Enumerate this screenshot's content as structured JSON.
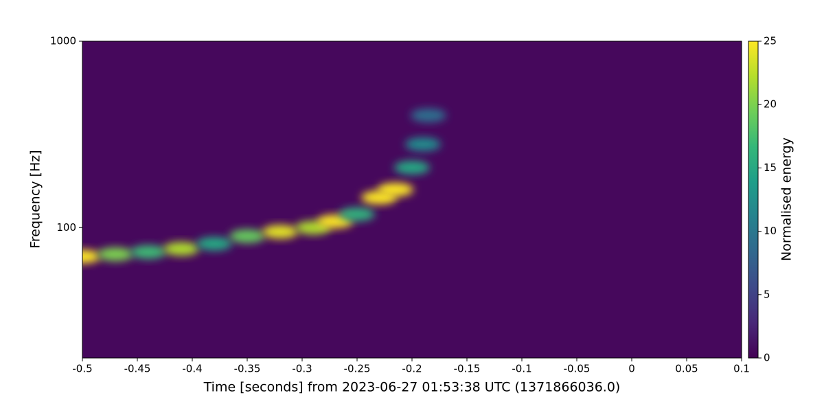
{
  "chart_data": {
    "type": "spectrogram",
    "xlabel": "Time [seconds] from 2023-06-27 01:53:38 UTC (1371866036.0)",
    "ylabel": "Frequency [Hz]",
    "colorbar_label": "Normalised energy",
    "xlim": [
      -0.5,
      0.1
    ],
    "xticks": [
      -0.5,
      -0.45,
      -0.4,
      -0.35,
      -0.3,
      -0.25,
      -0.2,
      -0.15,
      -0.1,
      -0.05,
      0,
      0.05,
      0.1
    ],
    "ylim": [
      20,
      1000
    ],
    "yticks": [
      100,
      1000
    ],
    "yscale": "log",
    "clim": [
      0,
      25
    ],
    "cticks": [
      0,
      5,
      10,
      15,
      20,
      25
    ],
    "colormap": "viridis",
    "x": [
      -0.5,
      -0.47,
      -0.44,
      -0.41,
      -0.38,
      -0.35,
      -0.32,
      -0.29,
      -0.27,
      -0.25,
      -0.23,
      -0.215,
      -0.2,
      -0.19,
      -0.185
    ],
    "y": [
      70,
      72,
      74,
      77,
      82,
      90,
      95,
      100,
      108,
      118,
      145,
      160,
      210,
      280,
      400
    ],
    "energy": [
      25,
      20,
      17,
      22,
      15,
      19,
      24,
      22,
      25,
      16,
      25,
      25,
      15,
      12,
      9
    ]
  }
}
